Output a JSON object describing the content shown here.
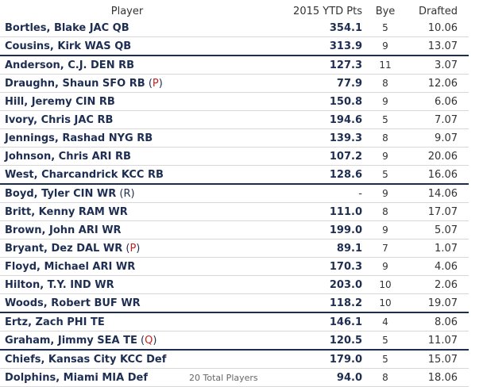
{
  "headers": {
    "player": "Player",
    "pts": "2015 YTD Pts",
    "bye": "Bye",
    "drafted": "Drafted"
  },
  "rows": [
    {
      "name": "Bortles, Blake JAC QB",
      "status": "",
      "pts": "354.1",
      "bye": "5",
      "drafted": "10.06",
      "group_start": false
    },
    {
      "name": "Cousins, Kirk WAS QB",
      "status": "",
      "pts": "313.9",
      "bye": "9",
      "drafted": "13.07",
      "group_start": false
    },
    {
      "name": "Anderson, C.J. DEN RB",
      "status": "",
      "pts": "127.3",
      "bye": "11",
      "drafted": "3.07",
      "group_start": true
    },
    {
      "name": "Draughn, Shaun SFO RB",
      "status": "P",
      "pts": "77.9",
      "bye": "8",
      "drafted": "12.06",
      "group_start": false
    },
    {
      "name": "Hill, Jeremy CIN RB",
      "status": "",
      "pts": "150.8",
      "bye": "9",
      "drafted": "6.06",
      "group_start": false
    },
    {
      "name": "Ivory, Chris JAC RB",
      "status": "",
      "pts": "194.6",
      "bye": "5",
      "drafted": "7.07",
      "group_start": false
    },
    {
      "name": "Jennings, Rashad NYG RB",
      "status": "",
      "pts": "139.3",
      "bye": "8",
      "drafted": "9.07",
      "group_start": false
    },
    {
      "name": "Johnson, Chris ARI RB",
      "status": "",
      "pts": "107.2",
      "bye": "9",
      "drafted": "20.06",
      "group_start": false
    },
    {
      "name": "West, Charcandrick KCC RB",
      "status": "",
      "pts": "128.6",
      "bye": "5",
      "drafted": "16.06",
      "group_start": false
    },
    {
      "name": "Boyd, Tyler CIN WR",
      "status": "R",
      "pts": "-",
      "bye": "9",
      "drafted": "14.06",
      "group_start": true
    },
    {
      "name": "Britt, Kenny RAM WR",
      "status": "",
      "pts": "111.0",
      "bye": "8",
      "drafted": "17.07",
      "group_start": false
    },
    {
      "name": "Brown, John ARI WR",
      "status": "",
      "pts": "199.0",
      "bye": "9",
      "drafted": "5.07",
      "group_start": false
    },
    {
      "name": "Bryant, Dez DAL WR",
      "status": "P",
      "pts": "89.1",
      "bye": "7",
      "drafted": "1.07",
      "group_start": false
    },
    {
      "name": "Floyd, Michael ARI WR",
      "status": "",
      "pts": "170.3",
      "bye": "9",
      "drafted": "4.06",
      "group_start": false
    },
    {
      "name": "Hilton, T.Y. IND WR",
      "status": "",
      "pts": "203.0",
      "bye": "10",
      "drafted": "2.06",
      "group_start": false
    },
    {
      "name": "Woods, Robert BUF WR",
      "status": "",
      "pts": "118.2",
      "bye": "10",
      "drafted": "19.07",
      "group_start": false
    },
    {
      "name": "Ertz, Zach PHI TE",
      "status": "",
      "pts": "146.1",
      "bye": "4",
      "drafted": "8.06",
      "group_start": true
    },
    {
      "name": "Graham, Jimmy SEA TE",
      "status": "Q",
      "pts": "120.5",
      "bye": "5",
      "drafted": "11.07",
      "group_start": false
    },
    {
      "name": "Chiefs, Kansas City KCC Def",
      "status": "",
      "pts": "179.0",
      "bye": "5",
      "drafted": "15.07",
      "group_start": true
    },
    {
      "name": "Dolphins, Miami MIA Def",
      "status": "",
      "pts": "94.0",
      "bye": "8",
      "drafted": "18.06",
      "group_start": false
    }
  ],
  "footer": "20 Total Players",
  "colors": {
    "name_text": "#1e2e52",
    "status_alert": "#cc2020",
    "group_divider": "#1e2e52"
  }
}
